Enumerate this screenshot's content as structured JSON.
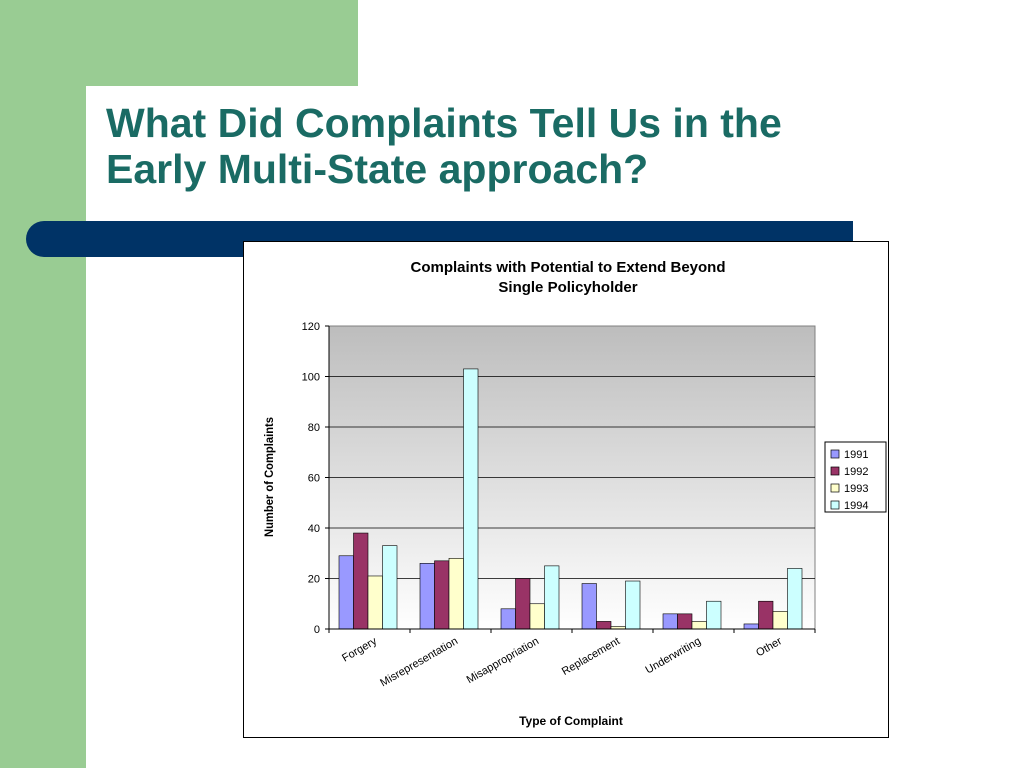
{
  "slide": {
    "title_line1": "What Did Complaints Tell Us in the",
    "title_line2": "Early Multi-State approach?"
  },
  "colors": {
    "green": "#99cc93",
    "navy": "#003366",
    "title": "#1a6b64",
    "plot_bg_top": "#bdbdbd",
    "plot_bg_bottom": "#ffffff"
  },
  "chart_data": {
    "type": "bar",
    "title": "Complaints with Potential to Extend Beyond Single Policyholder",
    "title_lines": [
      "Complaints with Potential to Extend Beyond",
      "Single Policyholder"
    ],
    "xlabel": "Type of Complaint",
    "ylabel": "Number of Complaints",
    "ylim": [
      0,
      120
    ],
    "yticks": [
      0,
      20,
      40,
      60,
      80,
      100,
      120
    ],
    "grid": true,
    "legend": "right",
    "categories": [
      "Forgery",
      "Misrepresentation",
      "Misappropriation",
      "Replacement",
      "Underwriting",
      "Other"
    ],
    "series": [
      {
        "name": "1991",
        "color": "#9999ff",
        "values": [
          29,
          26,
          8,
          18,
          6,
          2
        ]
      },
      {
        "name": "1992",
        "color": "#993366",
        "values": [
          38,
          27,
          20,
          3,
          6,
          11
        ]
      },
      {
        "name": "1993",
        "color": "#ffffcc",
        "values": [
          21,
          28,
          10,
          1,
          3,
          7
        ]
      },
      {
        "name": "1994",
        "color": "#ccffff",
        "values": [
          33,
          103,
          25,
          19,
          11,
          24
        ]
      }
    ]
  }
}
